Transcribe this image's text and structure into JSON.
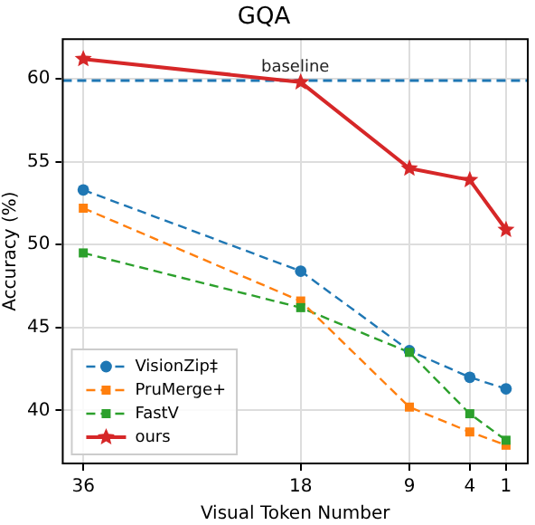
{
  "chart_data": {
    "type": "line",
    "title": "GQA",
    "xlabel": "Visual Token Number",
    "ylabel": "Accuracy (%)",
    "x": [
      36,
      18,
      9,
      4,
      1
    ],
    "series": [
      {
        "name": "VisionZip‡",
        "color": "#1f77b4",
        "marker": "circle",
        "line_style": "dashed",
        "values": [
          53.3,
          48.4,
          43.6,
          42.0,
          41.3
        ]
      },
      {
        "name": "PruMerge+",
        "color": "#ff7f0e",
        "marker": "square",
        "line_style": "dashed",
        "values": [
          52.2,
          46.6,
          40.2,
          38.7,
          37.9
        ]
      },
      {
        "name": "FastV",
        "color": "#2ca02c",
        "marker": "square",
        "line_style": "dashed",
        "values": [
          49.5,
          46.2,
          43.5,
          39.8,
          38.2
        ]
      },
      {
        "name": "ours",
        "color": "#d62728",
        "marker": "star",
        "line_style": "solid",
        "values": [
          61.2,
          59.8,
          54.6,
          53.9,
          50.9
        ]
      }
    ],
    "xlim": [
      37.7,
      -0.8
    ],
    "xticks": [
      36,
      18,
      9,
      4,
      1
    ],
    "ylim": [
      36.8,
      62.4
    ],
    "yticks": [
      40,
      45,
      50,
      55,
      60
    ],
    "ref_lines": [
      {
        "axis": "y",
        "value": 59.9,
        "label": "baseline",
        "color": "#1f77b4",
        "line_style": "dashed"
      }
    ],
    "grid": true,
    "legend": "bottom left"
  }
}
